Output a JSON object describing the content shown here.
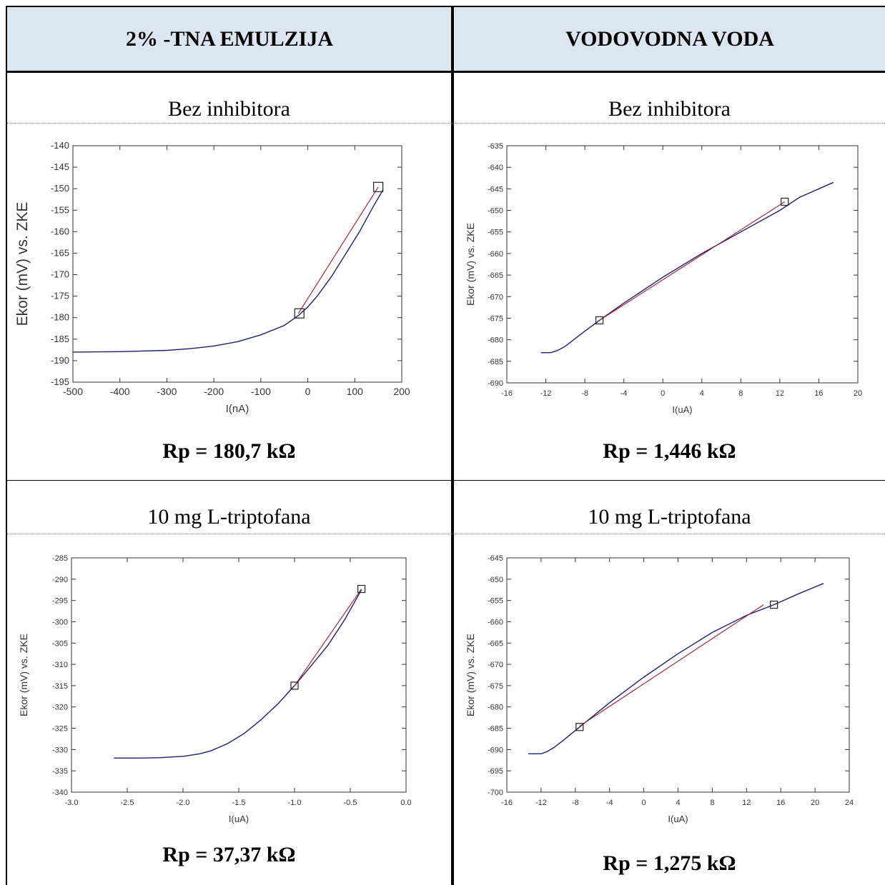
{
  "headers": {
    "left": "2% -TNA EMULZIJA",
    "right": "VODOVODNA VODA"
  },
  "conditions": {
    "row1_left": "Bez inhibitora",
    "row1_right": "Bez inhibitora",
    "row2_left": "10 mg L-triptofana",
    "row2_right": "10 mg L-triptofana"
  },
  "results": {
    "row1_left": "Rp = 180,7 kΩ",
    "row1_right": "Rp = 1,446 kΩ",
    "row2_left": "Rp = 37,37 kΩ",
    "row2_right": "Rp = 1,275 kΩ"
  },
  "colors": {
    "header_bg": "#dce6f1",
    "curve": "#1f1f6e",
    "fit": "#9b2a3a"
  },
  "chart_data": [
    {
      "type": "line",
      "xlabel": "I(nA)",
      "ylabel": "Ekor (mV) vs. ZKE",
      "xlim": [
        -500,
        200
      ],
      "ylim": [
        -195,
        -140
      ],
      "xticks": [
        "-500",
        "-400",
        "-300",
        "-200",
        "-100",
        "0",
        "100",
        "200"
      ],
      "yticks": [
        "-140",
        "-145",
        "-150",
        "-155",
        "-160",
        "-165",
        "-170",
        "-175",
        "-180",
        "-185",
        "-190",
        "-195"
      ],
      "series": [
        {
          "x": [
            -500,
            -400,
            -300,
            -250,
            -200,
            -150,
            -100,
            -50,
            -20,
            0,
            20,
            50,
            80,
            110,
            140,
            160
          ],
          "y": [
            -188,
            -187.9,
            -187.6,
            -187.2,
            -186.6,
            -185.6,
            -184,
            -181.8,
            -179.5,
            -177.5,
            -175,
            -170.5,
            -165.3,
            -160,
            -154,
            -150.3
          ]
        },
        {
          "x": [
            -20,
            150
          ],
          "y": [
            -179,
            -149.6
          ]
        }
      ],
      "markers": [
        {
          "x": -18,
          "y": -179
        },
        {
          "x": 150,
          "y": -149.6
        }
      ]
    },
    {
      "type": "line",
      "xlabel": "I(uA)",
      "ylabel": "Ekor (mV) vs. ZKE",
      "xlim": [
        -16,
        20
      ],
      "ylim": [
        -690,
        -635
      ],
      "xticks": [
        "-16",
        "-12",
        "-8",
        "-4",
        "0",
        "4",
        "8",
        "12",
        "16",
        "20"
      ],
      "yticks": [
        "-635",
        "-640",
        "-645",
        "-650",
        "-655",
        "-660",
        "-665",
        "-670",
        "-675",
        "-680",
        "-685",
        "-690"
      ],
      "series": [
        {
          "x": [
            -12.5,
            -11.5,
            -10.8,
            -10,
            -8,
            -6.5,
            -4,
            0,
            4,
            8,
            12,
            14,
            17.5
          ],
          "y": [
            -683,
            -683,
            -682.5,
            -681.5,
            -678,
            -675.5,
            -671.5,
            -665.5,
            -660,
            -655,
            -650,
            -647,
            -643.5
          ]
        },
        {
          "x": [
            -6.5,
            12.5
          ],
          "y": [
            -675.5,
            -648
          ]
        }
      ],
      "markers": [
        {
          "x": -6.5,
          "y": -675.5
        },
        {
          "x": 12.5,
          "y": -648
        }
      ]
    },
    {
      "type": "line",
      "xlabel": "I(uA)",
      "ylabel": "Ekor (mV) vs. ZKE",
      "xlim": [
        -3.0,
        0.0
      ],
      "ylim": [
        -340,
        -285
      ],
      "xticks": [
        "-3.0",
        "-2.5",
        "-2.0",
        "-1.5",
        "-1.0",
        "-0.5",
        "0.0"
      ],
      "yticks": [
        "-285",
        "-290",
        "-295",
        "-300",
        "-305",
        "-310",
        "-315",
        "-320",
        "-325",
        "-330",
        "-335",
        "-340"
      ],
      "series": [
        {
          "x": [
            -2.62,
            -2.4,
            -2.2,
            -2.0,
            -1.85,
            -1.75,
            -1.6,
            -1.45,
            -1.3,
            -1.15,
            -1.0,
            -0.85,
            -0.7,
            -0.55,
            -0.4
          ],
          "y": [
            -332,
            -332,
            -331.9,
            -331.6,
            -331,
            -330.3,
            -328.6,
            -326.2,
            -323,
            -319.3,
            -315,
            -310.3,
            -305.5,
            -299.5,
            -292.5
          ]
        },
        {
          "x": [
            -1.0,
            -0.4
          ],
          "y": [
            -315,
            -292.3
          ]
        }
      ],
      "markers": [
        {
          "x": -1.0,
          "y": -315
        },
        {
          "x": -0.4,
          "y": -292.3
        }
      ]
    },
    {
      "type": "line",
      "xlabel": "I(uA)",
      "ylabel": "Ekor (mV) vs. ZKE",
      "xlim": [
        -16,
        24
      ],
      "ylim": [
        -700,
        -645
      ],
      "xticks": [
        "-16",
        "-12",
        "-8",
        "-4",
        "0",
        "4",
        "8",
        "12",
        "16",
        "20",
        "24"
      ],
      "yticks": [
        "-645",
        "-650",
        "-655",
        "-660",
        "-665",
        "-670",
        "-675",
        "-680",
        "-685",
        "-690",
        "-695",
        "-700"
      ],
      "series": [
        {
          "x": [
            -13.5,
            -12,
            -11.3,
            -10.5,
            -9.5,
            -7.5,
            -4,
            0,
            4,
            8,
            12,
            15.2,
            18,
            21
          ],
          "y": [
            -691,
            -691,
            -690.5,
            -689.5,
            -688,
            -684.7,
            -679,
            -673,
            -667.5,
            -662.5,
            -658.5,
            -656,
            -653.5,
            -651
          ]
        },
        {
          "x": [
            -7.5,
            14
          ],
          "y": [
            -684.5,
            -656
          ]
        }
      ],
      "markers": [
        {
          "x": -7.5,
          "y": -684.7
        },
        {
          "x": 15.2,
          "y": -656
        }
      ]
    }
  ]
}
